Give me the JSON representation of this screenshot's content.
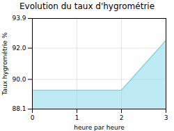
{
  "chart_data": {
    "type": "area",
    "title": "Evolution du taux d'hygrométrie",
    "xlabel": "heure par heure",
    "ylabel": "Taux hygrométrie %",
    "x": [
      0,
      2,
      3
    ],
    "values": [
      89.3,
      89.3,
      92.5
    ],
    "color": "#7dd8e8",
    "xlim": [
      0,
      3
    ],
    "ylim": [
      88.1,
      93.9
    ],
    "xticks": [
      0,
      1,
      2,
      3
    ],
    "yticks": [
      88.1,
      {
        "value": 90,
        "label": "90.0"
      },
      {
        "value": 92,
        "label": "92.0"
      },
      93.9
    ],
    "grid": true
  }
}
